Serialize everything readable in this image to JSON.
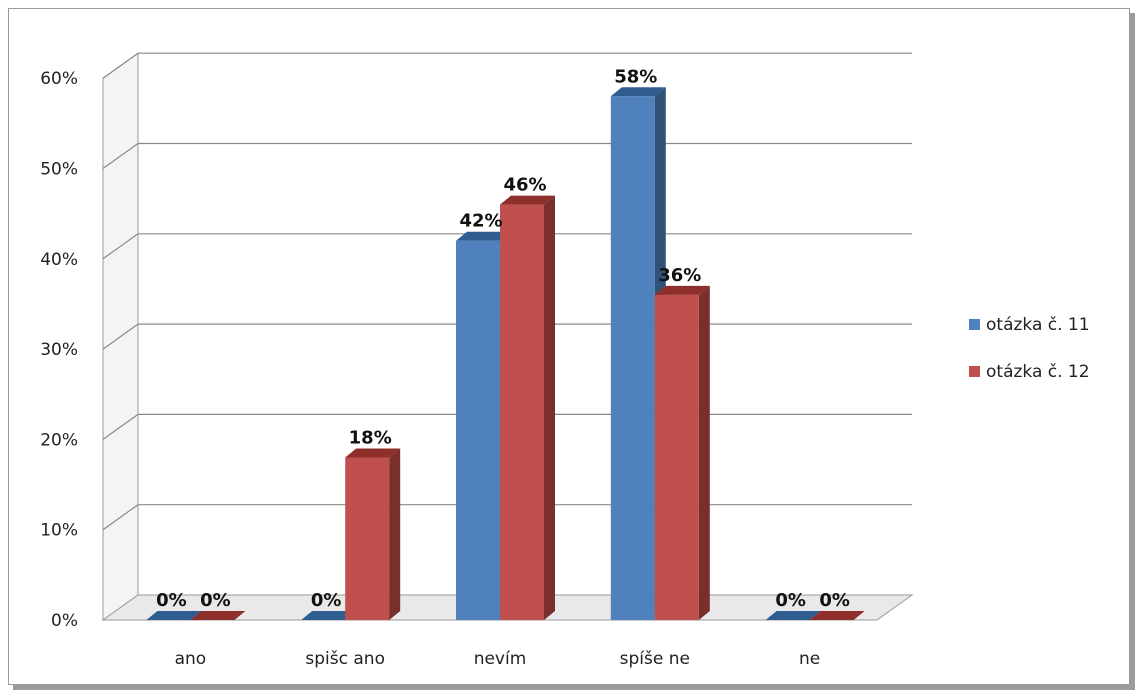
{
  "chart_data": {
    "type": "bar",
    "categories": [
      "ano",
      "spišc ano",
      "nevím",
      "spíše ne",
      "ne"
    ],
    "series": [
      {
        "name": "otázka č. 11",
        "values": [
          0,
          0,
          42,
          58,
          0
        ],
        "labels": [
          "0%",
          "0%",
          "42%",
          "58%",
          "0%"
        ],
        "color": "#4f81bd",
        "top_color": "#2f5d8f",
        "side_color": "#31537a"
      },
      {
        "name": "otázka č. 12",
        "values": [
          0,
          18,
          46,
          36,
          0
        ],
        "labels": [
          "0%",
          "18%",
          "46%",
          "36%",
          "0%"
        ],
        "color": "#c0504d",
        "top_color": "#8f2f2c",
        "side_color": "#7a2f2d"
      }
    ],
    "yticks": [
      "0%",
      "10%",
      "20%",
      "30%",
      "40%",
      "50%",
      "60%"
    ],
    "ylim": [
      0,
      60
    ],
    "grid": true,
    "legend_position": "right",
    "title": "",
    "xlabel": "",
    "ylabel": ""
  }
}
